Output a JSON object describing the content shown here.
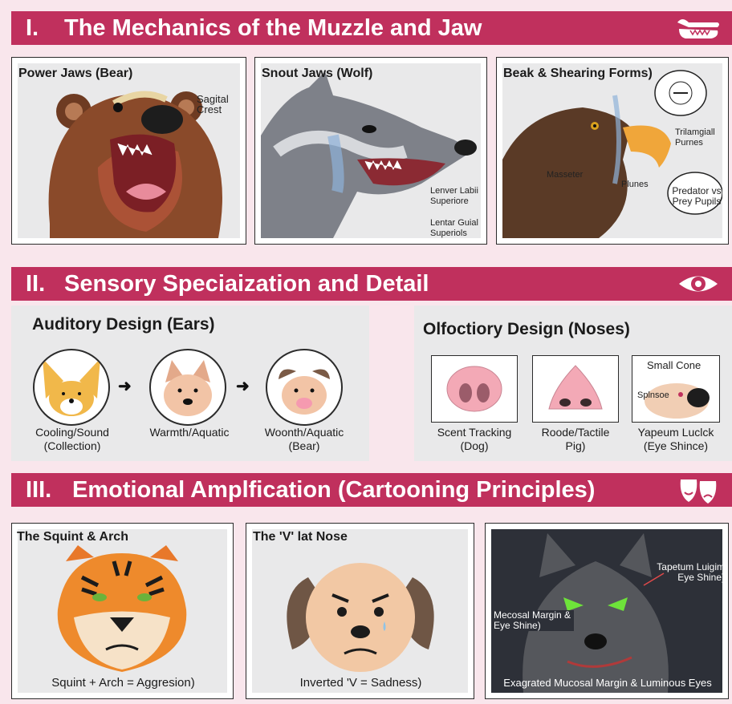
{
  "sections": [
    {
      "number": "I.",
      "title": "The Mechanics of the Muzzle and Jaw",
      "icon": "jaw-icon"
    },
    {
      "number": "II.",
      "title": "Sensory Speciaization and Detail",
      "icon": "eye-icon"
    },
    {
      "number": "III.",
      "title": "Emotional Amplfication (Cartooning Principles)",
      "icon": "theater-masks-icon"
    }
  ],
  "jaws": {
    "bear": {
      "title": "Power Jaws (Bear)",
      "label": "Sagital Crest"
    },
    "wolf": {
      "title": "Snout Jaws (Wolf)",
      "label1": "Lenver Labii Superiore",
      "label2": "Lentar Guial Superiols"
    },
    "eagle": {
      "title": "Beak & Shearing Forms)",
      "label_masseter": "Masseter",
      "label_trigeminal": "Trilamgiall Purnes",
      "label_plunes": "Plunes",
      "bubble_text": "Predator vs Prey Pupils"
    }
  },
  "sensory": {
    "ears": {
      "title": "Auditory Design (Ears)",
      "items": [
        {
          "caption": "Cooling/Sound (Collection)",
          "icon": "fox-ears-icon"
        },
        {
          "caption": "Warmth/Aquatic",
          "icon": "bear-ears-icon"
        },
        {
          "caption": "Woonth/Aquatic (Bear)",
          "icon": "pig-ears-icon"
        }
      ]
    },
    "noses": {
      "title": "Olfoctiory Design (Noses)",
      "items": [
        {
          "caption": "Scent Tracking (Dog)",
          "icon": "dog-nose-icon"
        },
        {
          "caption": "Roode/Tactile Pig)",
          "icon": "pig-nose-icon"
        },
        {
          "caption": "Yapeum Luclck (Eye Shince)",
          "icon": "cone-nose-icon",
          "top_label": "Small Cone",
          "side_label": "Splnsoe"
        }
      ]
    }
  },
  "emotion": {
    "tiger": {
      "title": "The Squint & Arch",
      "caption": "Squint + Arch = Aggresion)"
    },
    "dog": {
      "title": "The 'V' lat Nose",
      "caption": "Inverted 'V = Sadness)"
    },
    "wolf": {
      "label1": "Tapetum Luigim Eye Shine)",
      "label2": "Mecosal Margin & Eye Shine)",
      "caption": "Exagrated Mucosal Margin & Luminous Eyes"
    }
  },
  "colors": {
    "banner": "#c0305d",
    "background": "#f9e6ec",
    "panel_inner": "#e9e9ea"
  }
}
